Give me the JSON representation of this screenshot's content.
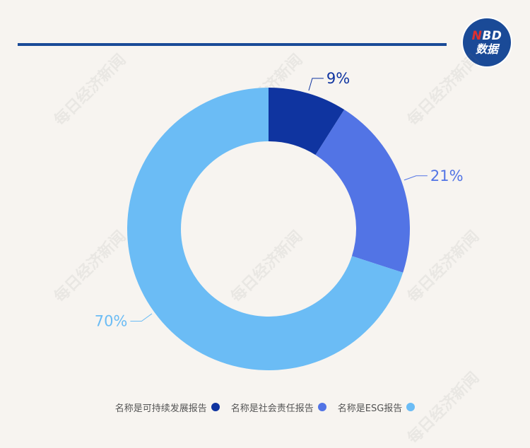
{
  "brand": {
    "line1_red": "N",
    "line1_rest": "BD",
    "line2": "数据"
  },
  "watermark_text": "每日经济新闻",
  "chart_data": {
    "type": "pie",
    "donut": true,
    "slices": [
      {
        "name": "名称是可持续发展报告",
        "value": 9,
        "label": "9%",
        "color": "#0f34a0"
      },
      {
        "name": "名称是社会责任报告",
        "value": 21,
        "label": "21%",
        "color": "#5274e5"
      },
      {
        "name": "名称是ESG报告",
        "value": 70,
        "label": "70%",
        "color": "#6bbcf5"
      }
    ],
    "legend_position": "bottom"
  }
}
